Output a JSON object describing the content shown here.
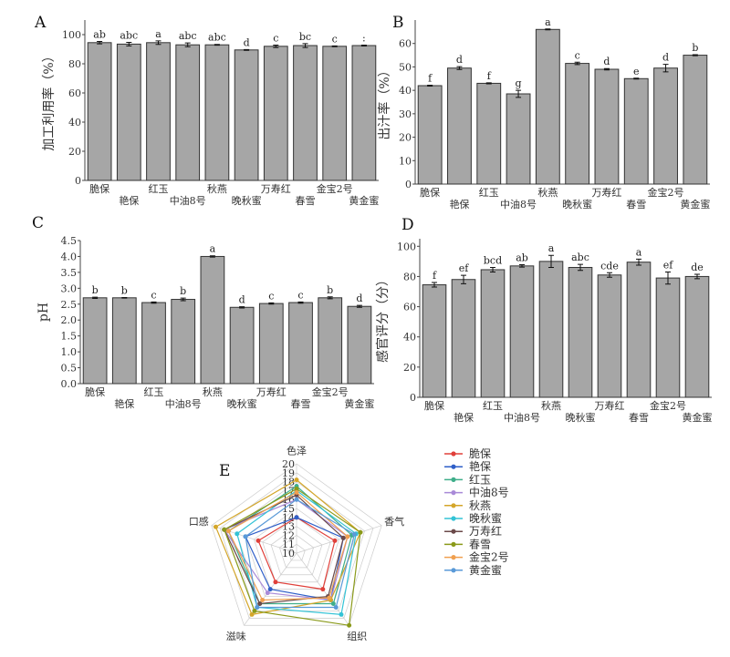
{
  "chart_data": [
    {
      "panel": "A",
      "type": "bar",
      "categories": [
        "脆保",
        "艳保",
        "红玉",
        "中油8号",
        "秋燕",
        "晚秋蜜",
        "万寿红",
        "春雪",
        "金宝2号",
        "黄金蜜"
      ],
      "values": [
        94.5,
        93.5,
        94.5,
        93,
        93,
        89.5,
        92,
        92.5,
        92,
        92.5
      ],
      "errors": [
        0.8,
        1.2,
        1.2,
        1.3,
        0.3,
        0.3,
        0.8,
        1.3,
        0.3,
        0.3
      ],
      "sig": [
        "ab",
        "abc",
        "a",
        "abc",
        "abc",
        "d",
        "c",
        "bc",
        "c",
        ":"
      ],
      "ylabel": "加工利用率（%）",
      "ylim": [
        0,
        110
      ],
      "yticks": [
        0,
        20,
        40,
        60,
        80,
        100
      ]
    },
    {
      "panel": "B",
      "type": "bar",
      "categories": [
        "脆保",
        "艳保",
        "红玉",
        "中油8号",
        "秋燕",
        "晚秋蜜",
        "万寿红",
        "春雪",
        "金宝2号",
        "黄金蜜"
      ],
      "values": [
        42,
        49.5,
        43,
        38.5,
        66,
        51.5,
        49,
        45,
        49.5,
        55
      ],
      "errors": [
        0.2,
        0.6,
        0.2,
        1.5,
        0.2,
        0.5,
        0.3,
        0.2,
        1.6,
        0.2
      ],
      "sig": [
        "f",
        "d",
        "f",
        "g",
        "a",
        "c",
        "d",
        "e",
        "d",
        "b"
      ],
      "ylabel": "出汁率（%）",
      "ylim": [
        0,
        70
      ],
      "yticks": [
        0,
        10,
        20,
        30,
        40,
        50,
        60
      ]
    },
    {
      "panel": "C",
      "type": "bar",
      "categories": [
        "脆保",
        "艳保",
        "红玉",
        "中油8号",
        "秋燕",
        "晚秋蜜",
        "万寿红",
        "春雪",
        "金宝2号",
        "黄金蜜"
      ],
      "values": [
        2.7,
        2.7,
        2.55,
        2.65,
        4.0,
        2.4,
        2.52,
        2.55,
        2.7,
        2.43
      ],
      "errors": [
        0.02,
        0.01,
        0.02,
        0.04,
        0.02,
        0.02,
        0.02,
        0.02,
        0.03,
        0.03
      ],
      "sig": [
        "b",
        "b",
        "c",
        "b",
        "a",
        "d",
        "c",
        "c",
        "b",
        "d"
      ],
      "ylabel": "pH",
      "ylim": [
        0,
        4.5
      ],
      "yticks": [
        0.0,
        0.5,
        1.0,
        1.5,
        2.0,
        2.5,
        3.0,
        3.5,
        4.0,
        4.5
      ]
    },
    {
      "panel": "D",
      "type": "bar",
      "categories": [
        "脆保",
        "艳保",
        "红玉",
        "中油8号",
        "秋燕",
        "晚秋蜜",
        "万寿红",
        "春雪",
        "金宝2号",
        "黄金蜜"
      ],
      "values": [
        74.5,
        78,
        84.5,
        87,
        90,
        86,
        81,
        89.5,
        79,
        80
      ],
      "errors": [
        1.5,
        2.8,
        1.5,
        0.8,
        4,
        2,
        1.5,
        2,
        4,
        1.5
      ],
      "sig": [
        "f",
        "ef",
        "bcd",
        "ab",
        "a",
        "abc",
        "cde",
        "a",
        "ef",
        "de"
      ],
      "ylabel": "感官评分（分）",
      "ylim": [
        0,
        105
      ],
      "yticks": [
        0,
        20,
        40,
        60,
        80,
        100
      ]
    },
    {
      "panel": "E",
      "type": "radar",
      "axes": [
        "色泽",
        "香气",
        "组织",
        "滋味",
        "口感"
      ],
      "rlim": [
        10,
        20
      ],
      "rticks": [
        10,
        11,
        12,
        13,
        14,
        15,
        16,
        17,
        18,
        19,
        20
      ],
      "series": [
        {
          "name": "脆保",
          "color": "#e0403a",
          "values": [
            14,
            14.5,
            15,
            14,
            14.5
          ]
        },
        {
          "name": "艳保",
          "color": "#2f5fc8",
          "values": [
            14,
            15.5,
            16.5,
            15,
            16
          ]
        },
        {
          "name": "红玉",
          "color": "#3fae8a",
          "values": [
            17.5,
            16.5,
            17,
            17,
            18
          ]
        },
        {
          "name": "中油8号",
          "color": "#a98ad8",
          "values": [
            16,
            16,
            16.5,
            15.5,
            18.5
          ]
        },
        {
          "name": "秋燕",
          "color": "#d4a62a",
          "values": [
            18.2,
            17.5,
            16.5,
            18.5,
            19.5
          ]
        },
        {
          "name": "晚秋蜜",
          "color": "#33c3d6",
          "values": [
            17,
            17,
            18.5,
            17.5,
            17
          ]
        },
        {
          "name": "万寿红",
          "color": "#6b4a4a",
          "values": [
            16.5,
            15.5,
            16,
            17,
            18.5
          ]
        },
        {
          "name": "春雪",
          "color": "#8a9a1a",
          "values": [
            17.2,
            17.5,
            20,
            18,
            18.5
          ]
        },
        {
          "name": "金宝2号",
          "color": "#f0a050",
          "values": [
            16.8,
            16,
            16.2,
            16.5,
            18
          ]
        },
        {
          "name": "黄金蜜",
          "color": "#5a9ad8",
          "values": [
            16,
            16.8,
            17.5,
            17.5,
            16
          ]
        }
      ]
    }
  ]
}
